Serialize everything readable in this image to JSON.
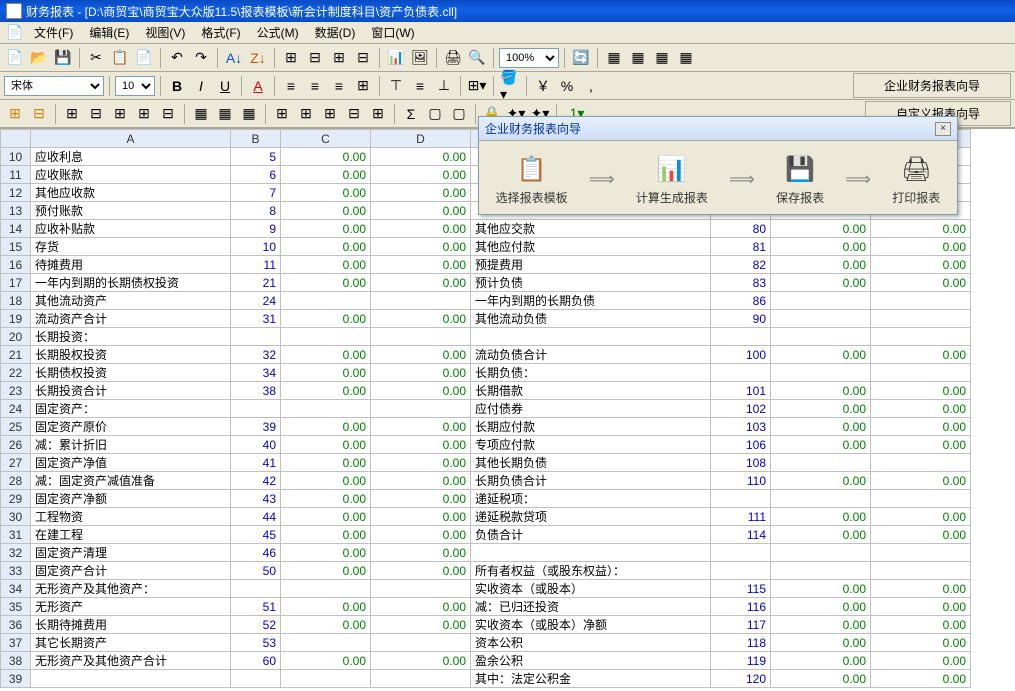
{
  "titlebar": {
    "text": "财务报表 - [D:\\商贸宝\\商贸宝大众版11.5\\报表模板\\新会计制度科目\\资产负债表.cll]"
  },
  "menu": [
    {
      "label": "文件(F)"
    },
    {
      "label": "编辑(E)"
    },
    {
      "label": "视图(V)"
    },
    {
      "label": "格式(F)"
    },
    {
      "label": "公式(M)"
    },
    {
      "label": "数据(D)"
    },
    {
      "label": "窗口(W)"
    }
  ],
  "toolbar1": {
    "zoom": "100%"
  },
  "toolbar2": {
    "font": "宋体",
    "size": "10",
    "wizard1": "企业财务报表向导",
    "wizard2": "自定义报表向导"
  },
  "colHeaders": [
    "A",
    "B",
    "C",
    "D"
  ],
  "rows": [
    {
      "n": "10",
      "a": "  应收利息",
      "b": "5",
      "c": "0.00",
      "d": "0.00",
      "e": "",
      "f": "",
      "g": "",
      "h": ""
    },
    {
      "n": "11",
      "a": "  应收账款",
      "b": "6",
      "c": "0.00",
      "d": "0.00",
      "e": "",
      "f": "",
      "g": "",
      "h": ""
    },
    {
      "n": "12",
      "a": "  其他应收款",
      "b": "7",
      "c": "0.00",
      "d": "0.00",
      "e": "",
      "f": "",
      "g": "",
      "h": ""
    },
    {
      "n": "13",
      "a": "  预付账款",
      "b": "8",
      "c": "0.00",
      "d": "0.00",
      "e": "",
      "f": "",
      "g": "",
      "h": ""
    },
    {
      "n": "14",
      "a": "  应收补贴款",
      "b": "9",
      "c": "0.00",
      "d": "0.00",
      "e": "  其他应交款",
      "f": "80",
      "g": "0.00",
      "h": "0.00"
    },
    {
      "n": "15",
      "a": "  存货",
      "b": "10",
      "c": "0.00",
      "d": "0.00",
      "e": "  其他应付款",
      "f": "81",
      "g": "0.00",
      "h": "0.00"
    },
    {
      "n": "16",
      "a": "  待摊费用",
      "b": "11",
      "c": "0.00",
      "d": "0.00",
      "e": "  预提费用",
      "f": "82",
      "g": "0.00",
      "h": "0.00"
    },
    {
      "n": "17",
      "a": "  一年内到期的长期债权投资",
      "b": "21",
      "c": "0.00",
      "d": "0.00",
      "e": "  预计负债",
      "f": "83",
      "g": "0.00",
      "h": "0.00"
    },
    {
      "n": "18",
      "a": "  其他流动资产",
      "b": "24",
      "c": "",
      "d": "",
      "e": "  一年内到期的长期负债",
      "f": "86",
      "g": "",
      "h": ""
    },
    {
      "n": "19",
      "a": "流动资产合计",
      "b": "31",
      "c": "0.00",
      "d": "0.00",
      "e": "  其他流动负债",
      "f": "90",
      "g": "",
      "h": ""
    },
    {
      "n": "20",
      "a": "长期投资：",
      "b": "",
      "c": "",
      "d": "",
      "e": "",
      "f": "",
      "g": "",
      "h": ""
    },
    {
      "n": "21",
      "a": "  长期股权投资",
      "b": "32",
      "c": "0.00",
      "d": "0.00",
      "e": "流动负债合计",
      "f": "100",
      "g": "0.00",
      "h": "0.00"
    },
    {
      "n": "22",
      "a": "  长期债权投资",
      "b": "34",
      "c": "0.00",
      "d": "0.00",
      "e": "长期负债：",
      "f": "",
      "g": "",
      "h": ""
    },
    {
      "n": "23",
      "a": "长期投资合计",
      "b": "38",
      "c": "0.00",
      "d": "0.00",
      "e": "  长期借款",
      "f": "101",
      "g": "0.00",
      "h": "0.00"
    },
    {
      "n": "24",
      "a": "固定资产：",
      "b": "",
      "c": "",
      "d": "",
      "e": "  应付债券",
      "f": "102",
      "g": "0.00",
      "h": "0.00"
    },
    {
      "n": "25",
      "a": "  固定资产原价",
      "b": "39",
      "c": "0.00",
      "d": "0.00",
      "e": "  长期应付款",
      "f": "103",
      "g": "0.00",
      "h": "0.00"
    },
    {
      "n": "26",
      "a": "  减：累计折旧",
      "b": "40",
      "c": "0.00",
      "d": "0.00",
      "e": "  专项应付款",
      "f": "106",
      "g": "0.00",
      "h": "0.00"
    },
    {
      "n": "27",
      "a": "  固定资产净值",
      "b": "41",
      "c": "0.00",
      "d": "0.00",
      "e": "  其他长期负债",
      "f": "108",
      "g": "",
      "h": ""
    },
    {
      "n": "28",
      "a": "  减：固定资产减值准备",
      "b": "42",
      "c": "0.00",
      "d": "0.00",
      "e": "  长期负债合计",
      "f": "110",
      "g": "0.00",
      "h": "0.00"
    },
    {
      "n": "29",
      "a": "  固定资产净额",
      "b": "43",
      "c": "0.00",
      "d": "0.00",
      "e": "递延税项：",
      "f": "",
      "g": "",
      "h": ""
    },
    {
      "n": "30",
      "a": "  工程物资",
      "b": "44",
      "c": "0.00",
      "d": "0.00",
      "e": "  递延税款贷项",
      "f": "111",
      "g": "0.00",
      "h": "0.00"
    },
    {
      "n": "31",
      "a": "  在建工程",
      "b": "45",
      "c": "0.00",
      "d": "0.00",
      "e": "  负债合计",
      "f": "114",
      "g": "0.00",
      "h": "0.00"
    },
    {
      "n": "32",
      "a": "  固定资产清理",
      "b": "46",
      "c": "0.00",
      "d": "0.00",
      "e": "",
      "f": "",
      "g": "",
      "h": ""
    },
    {
      "n": "33",
      "a": "固定资产合计",
      "b": "50",
      "c": "0.00",
      "d": "0.00",
      "e": "所有者权益（或股东权益）：",
      "f": "",
      "g": "",
      "h": ""
    },
    {
      "n": "34",
      "a": "无形资产及其他资产：",
      "b": "",
      "c": "",
      "d": "",
      "e": "  实收资本（或股本）",
      "f": "115",
      "g": "0.00",
      "h": "0.00"
    },
    {
      "n": "35",
      "a": "  无形资产",
      "b": "51",
      "c": "0.00",
      "d": "0.00",
      "e": "  减：已归还投资",
      "f": "116",
      "g": "0.00",
      "h": "0.00"
    },
    {
      "n": "36",
      "a": "  长期待摊费用",
      "b": "52",
      "c": "0.00",
      "d": "0.00",
      "e": "  实收资本（或股本）净额",
      "f": "117",
      "g": "0.00",
      "h": "0.00"
    },
    {
      "n": "37",
      "a": "  其它长期资产",
      "b": "53",
      "c": "",
      "d": "",
      "e": "  资本公积",
      "f": "118",
      "g": "0.00",
      "h": "0.00"
    },
    {
      "n": "38",
      "a": "  无形资产及其他资产合计",
      "b": "60",
      "c": "0.00",
      "d": "0.00",
      "e": "  盈余公积",
      "f": "119",
      "g": "0.00",
      "h": "0.00"
    },
    {
      "n": "39",
      "a": "",
      "b": "",
      "c": "",
      "d": "",
      "e": "    其中：法定公积金",
      "f": "120",
      "g": "0.00",
      "h": "0.00"
    }
  ],
  "wizard": {
    "title": "企业财务报表向导",
    "steps": [
      {
        "icon": "📋",
        "label": "选择报表模板"
      },
      {
        "icon": "📊",
        "label": "计算生成报表"
      },
      {
        "icon": "💾",
        "label": "保存报表"
      },
      {
        "icon": "🖨",
        "label": "打印报表"
      }
    ],
    "close": "×"
  }
}
